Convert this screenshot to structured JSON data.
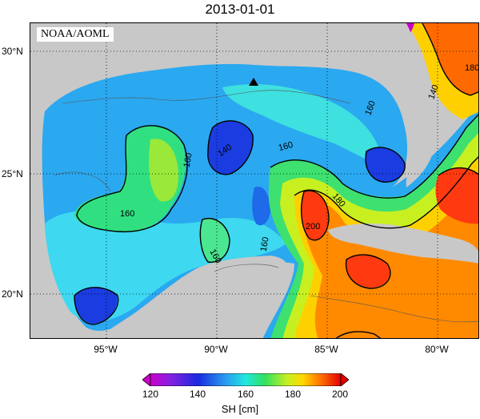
{
  "title": "2013-01-01",
  "credit": "NOAA/AOML",
  "lat_labels": [
    "30°N",
    "25°N",
    "20°N"
  ],
  "lon_labels": [
    "95°W",
    "90°W",
    "85°W",
    "80°W"
  ],
  "contour_labels": [
    "140",
    "160",
    "160",
    "160",
    "160",
    "160",
    "160",
    "180",
    "180",
    "200",
    "140"
  ],
  "colorbar": {
    "ticks": [
      "120",
      "140",
      "160",
      "180",
      "200"
    ],
    "label": "SH [cm]",
    "colors": [
      "#8a00c8",
      "#1a2ae0",
      "#2aa0f0",
      "#20e8e0",
      "#30e060",
      "#c8f020",
      "#ffd800",
      "#ff8a00",
      "#ff2a00",
      "#e00000"
    ]
  },
  "marker": "triangle"
}
